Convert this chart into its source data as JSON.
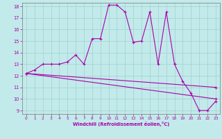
{
  "xlabel": "Windchill (Refroidissement éolien,°C)",
  "bg_color": "#c2eaea",
  "grid_color": "#a0d0d0",
  "line_color": "#aa00aa",
  "xmin": -0.5,
  "xmax": 23.5,
  "ymin": 8.7,
  "ymax": 18.3,
  "yticks": [
    9,
    10,
    11,
    12,
    13,
    14,
    15,
    16,
    17,
    18
  ],
  "xticks": [
    0,
    1,
    2,
    3,
    4,
    5,
    6,
    7,
    8,
    9,
    10,
    11,
    12,
    13,
    14,
    15,
    16,
    17,
    18,
    19,
    20,
    21,
    22,
    23
  ],
  "line1_x": [
    0,
    1,
    2,
    3,
    4,
    5,
    6,
    7,
    8,
    9,
    10,
    11,
    12,
    13,
    14,
    15,
    16,
    17,
    18,
    19,
    20,
    21,
    22,
    23
  ],
  "line1_y": [
    12.2,
    12.5,
    13.0,
    13.0,
    13.0,
    13.2,
    13.8,
    13.0,
    15.2,
    15.2,
    18.1,
    18.1,
    17.5,
    14.9,
    15.0,
    17.5,
    13.0,
    17.5,
    13.0,
    11.5,
    10.5,
    9.0,
    9.0,
    9.8
  ],
  "line2_x": [
    0,
    23
  ],
  "line2_y": [
    12.2,
    11.0
  ],
  "line3_x": [
    0,
    23
  ],
  "line3_y": [
    12.2,
    10.0
  ]
}
